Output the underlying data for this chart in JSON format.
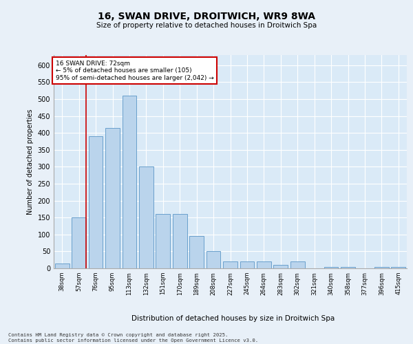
{
  "title_line1": "16, SWAN DRIVE, DROITWICH, WR9 8WA",
  "title_line2": "Size of property relative to detached houses in Droitwich Spa",
  "xlabel": "Distribution of detached houses by size in Droitwich Spa",
  "ylabel": "Number of detached properties",
  "categories": [
    "38sqm",
    "57sqm",
    "76sqm",
    "95sqm",
    "113sqm",
    "132sqm",
    "151sqm",
    "170sqm",
    "189sqm",
    "208sqm",
    "227sqm",
    "245sqm",
    "264sqm",
    "283sqm",
    "302sqm",
    "321sqm",
    "340sqm",
    "358sqm",
    "377sqm",
    "396sqm",
    "415sqm"
  ],
  "values": [
    15,
    150,
    390,
    415,
    510,
    300,
    160,
    160,
    95,
    50,
    20,
    20,
    20,
    10,
    20,
    0,
    5,
    5,
    0,
    5,
    5
  ],
  "bar_color": "#bad4ec",
  "bar_edge_color": "#6aa0cc",
  "bg_color": "#daeaf7",
  "grid_color": "#ffffff",
  "annotation_text": "16 SWAN DRIVE: 72sqm\n← 5% of detached houses are smaller (105)\n95% of semi-detached houses are larger (2,042) →",
  "annotation_box_color": "#ffffff",
  "annotation_border_color": "#cc0000",
  "vline_color": "#cc0000",
  "vline_x_index": 1,
  "ylim": [
    0,
    630
  ],
  "yticks": [
    0,
    50,
    100,
    150,
    200,
    250,
    300,
    350,
    400,
    450,
    500,
    550,
    600
  ],
  "footer_line1": "Contains HM Land Registry data © Crown copyright and database right 2025.",
  "footer_line2": "Contains public sector information licensed under the Open Government Licence v3.0.",
  "fig_bg_color": "#e8f0f8"
}
